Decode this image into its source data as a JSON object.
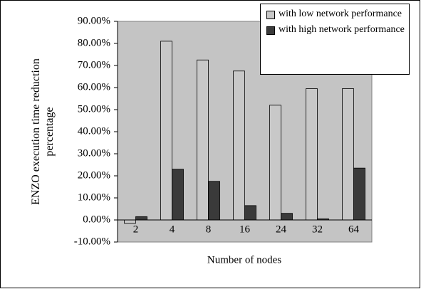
{
  "chart_data": {
    "type": "bar",
    "x_label": "Number of nodes",
    "y_label": "ENZO execution time reduction percentage",
    "categories": [
      "2",
      "4",
      "8",
      "16",
      "24",
      "32",
      "64"
    ],
    "series": [
      {
        "name": "with low network performance",
        "color": "#c8c8c8",
        "values": [
          -1.5,
          81,
          72.5,
          67.5,
          52,
          59.5,
          59.5
        ]
      },
      {
        "name": "with high network performance",
        "color": "#3a3a3a",
        "values": [
          1.5,
          23,
          17.5,
          6.5,
          3,
          0.5,
          23.5
        ]
      }
    ],
    "ylim": [
      -10,
      90
    ],
    "yticks": [
      {
        "value": -10,
        "label": "-10.00%"
      },
      {
        "value": 0,
        "label": "0.00%"
      },
      {
        "value": 10,
        "label": "10.00%"
      },
      {
        "value": 20,
        "label": "20.00%"
      },
      {
        "value": 30,
        "label": "30.00%"
      },
      {
        "value": 40,
        "label": "40.00%"
      },
      {
        "value": 50,
        "label": "50.00%"
      },
      {
        "value": 60,
        "label": "60.00%"
      },
      {
        "value": 70,
        "label": "70.00%"
      },
      {
        "value": 80,
        "label": "80.00%"
      },
      {
        "value": 90,
        "label": "90.00%"
      }
    ],
    "legend": "upper right"
  }
}
